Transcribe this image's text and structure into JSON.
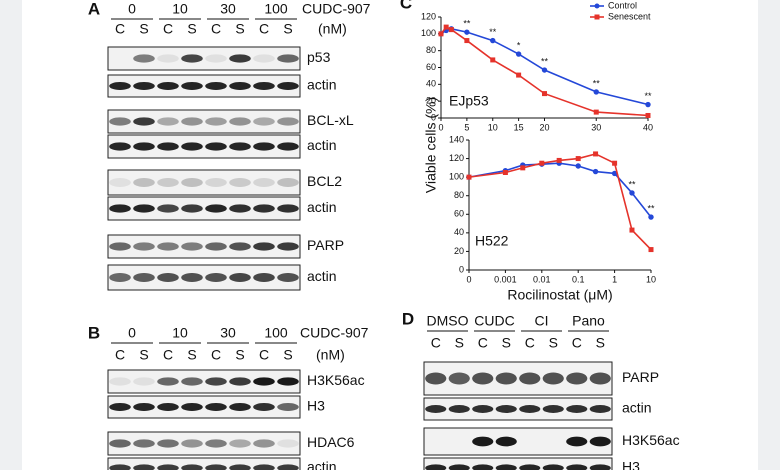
{
  "panel_A": {
    "label": "A",
    "doses": [
      "0",
      "10",
      "30",
      "100"
    ],
    "drug": "CUDC-907",
    "unit": "(nM)",
    "lanes": [
      "C",
      "S",
      "C",
      "S",
      "C",
      "S",
      "C",
      "S"
    ],
    "blots": [
      "p53",
      "actin",
      "BCL-xL",
      "actin",
      "BCL2",
      "actin",
      "PARP",
      "actin"
    ]
  },
  "panel_B": {
    "label": "B",
    "doses": [
      "0",
      "10",
      "30",
      "100"
    ],
    "drug": "CUDC-907",
    "unit": "(nM)",
    "lanes": [
      "C",
      "S",
      "C",
      "S",
      "C",
      "S",
      "C",
      "S"
    ],
    "blots": [
      "H3K56ac",
      "H3",
      "HDAC6",
      "actin"
    ]
  },
  "panel_C": {
    "label": "C",
    "y_label": "Viable cells (%)",
    "x_label": "Rocilinostat (μM)"
  },
  "panel_D": {
    "label": "D",
    "groups": [
      "DMSO",
      "CUDC",
      "CI",
      "Pano"
    ],
    "lanes": [
      "C",
      "S",
      "C",
      "S",
      "C",
      "S",
      "C",
      "S"
    ],
    "blots": [
      "PARP",
      "actin",
      "H3K56ac",
      "H3"
    ]
  },
  "chart_data": [
    {
      "type": "line",
      "cell_line": "EJp53",
      "x": [
        0,
        1,
        2,
        5,
        10,
        15,
        20,
        30,
        40
      ],
      "xlim": [
        0,
        40
      ],
      "xticks": [
        0,
        5,
        10,
        15,
        20,
        30,
        40
      ],
      "ylim": [
        0,
        120
      ],
      "yticks": [
        0,
        20,
        40,
        60,
        80,
        100,
        120
      ],
      "legend": "top-right",
      "series": [
        {
          "name": "Control",
          "color": "#2448d8",
          "marker": "circle",
          "values": [
            100,
            104,
            106,
            102,
            92,
            76,
            57,
            31,
            16
          ]
        },
        {
          "name": "Senescent",
          "color": "#e5332b",
          "marker": "square",
          "values": [
            100,
            108,
            105,
            92,
            69,
            51,
            29,
            7,
            3
          ]
        }
      ],
      "annotations": [
        {
          "x": 5,
          "text": "**"
        },
        {
          "x": 10,
          "text": "**"
        },
        {
          "x": 15,
          "text": "*"
        },
        {
          "x": 20,
          "text": "**"
        },
        {
          "x": 30,
          "text": "**"
        },
        {
          "x": 40,
          "text": "**"
        }
      ]
    },
    {
      "type": "line",
      "cell_line": "H522",
      "xscale": "log",
      "x": [
        0,
        0.001,
        0.003,
        0.01,
        0.03,
        0.1,
        0.3,
        1,
        3,
        10
      ],
      "xlim": [
        0,
        10
      ],
      "xticks": [
        0,
        0.001,
        0.01,
        0.1,
        1,
        10
      ],
      "ylim": [
        0,
        140
      ],
      "yticks": [
        0,
        20,
        40,
        60,
        80,
        100,
        120,
        140
      ],
      "series": [
        {
          "color": "#2448d8",
          "marker": "circle",
          "values": [
            100,
            107,
            113,
            114,
            115,
            112,
            106,
            104,
            83,
            57
          ]
        },
        {
          "color": "#e5332b",
          "marker": "square",
          "values": [
            100,
            105,
            110,
            115,
            118,
            120,
            125,
            115,
            43,
            22
          ]
        }
      ],
      "annotations": [
        {
          "x": 3,
          "text": "**"
        },
        {
          "x": 10,
          "text": "**"
        }
      ]
    }
  ]
}
